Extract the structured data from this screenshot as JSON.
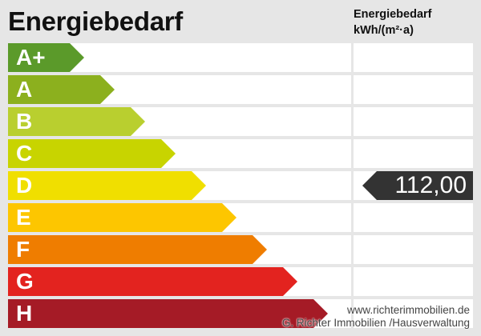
{
  "title": "Energiebedarf",
  "column_header": {
    "line1": "Energiebedarf",
    "line2": "kWh/(m²·a)"
  },
  "classes": [
    {
      "label": "A+",
      "color": "#5b9a2a"
    },
    {
      "label": "A",
      "color": "#8cb01e"
    },
    {
      "label": "B",
      "color": "#b9cf2f"
    },
    {
      "label": "C",
      "color": "#c8d400"
    },
    {
      "label": "D",
      "color": "#f0df00"
    },
    {
      "label": "E",
      "color": "#fdc600"
    },
    {
      "label": "F",
      "color": "#ef7d00"
    },
    {
      "label": "G",
      "color": "#e3231f"
    },
    {
      "label": "H",
      "color": "#a51b26"
    }
  ],
  "value": {
    "text": "112,00",
    "class": "D",
    "color": "#333333"
  },
  "footer": {
    "website": "www.richterimmobilien.de",
    "company": "G. Richter Immobilien /Hausverwaltung"
  }
}
